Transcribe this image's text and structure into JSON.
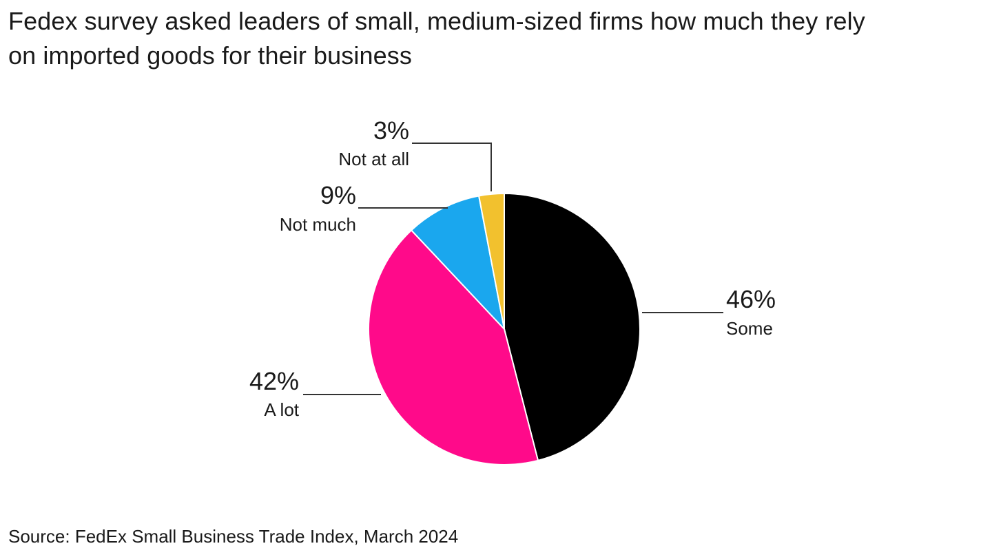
{
  "header": {
    "title_line1": "Fedex survey asked leaders of small, medium-sized firms how much they rely",
    "title_line2": "on imported goods for their business"
  },
  "footer": {
    "source": "Source: FedEx Small Business Trade Index, March 2024"
  },
  "chart_data": {
    "type": "pie",
    "title": "Fedex survey asked leaders of small, medium-sized firms how much they rely on imported goods for their business",
    "slices": [
      {
        "label": "Some",
        "value": 46,
        "value_label": "46%",
        "color": "#000000"
      },
      {
        "label": "A lot",
        "value": 42,
        "value_label": "42%",
        "color": "#ff0a8a"
      },
      {
        "label": "Not much",
        "value": 9,
        "value_label": "9%",
        "color": "#1aa7ee"
      },
      {
        "label": "Not at all",
        "value": 3,
        "value_label": "3%",
        "color": "#f2c12e"
      }
    ],
    "start": "12 o'clock",
    "direction": "clockwise",
    "legend": "none"
  }
}
